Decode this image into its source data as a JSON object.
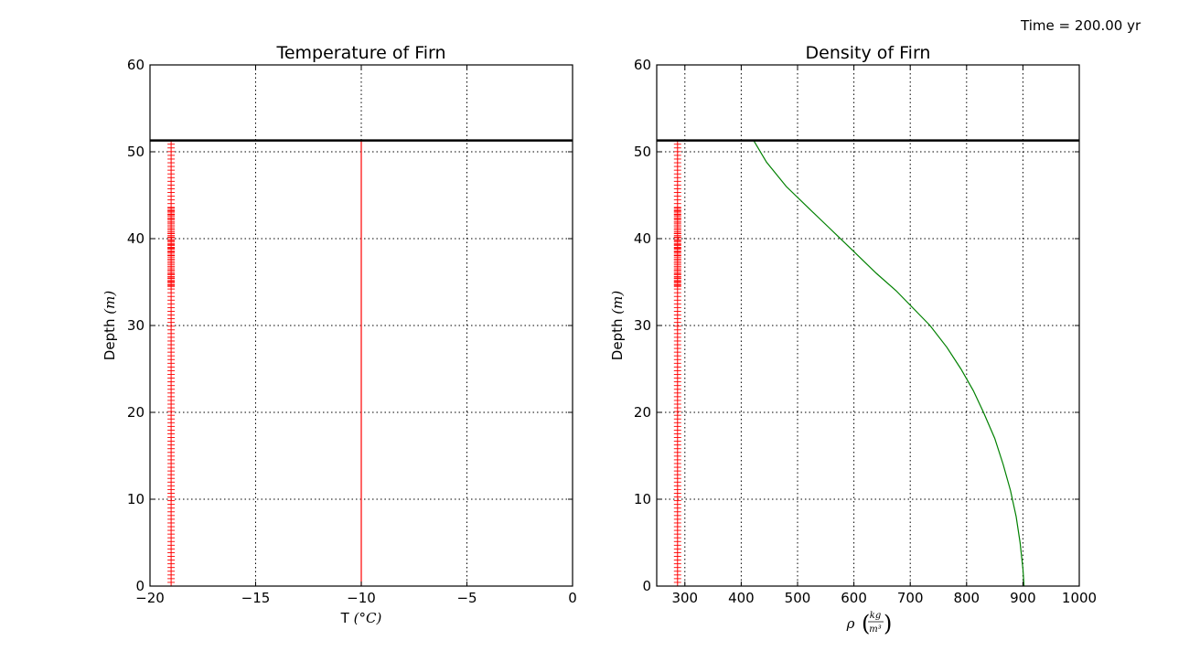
{
  "time_label": "Time = 200.00 yr",
  "chart_data": [
    {
      "type": "line",
      "title": "Temperature of Firn",
      "xlabel_text": "T",
      "xlabel_unit": "(°C)",
      "ylabel_text": "Depth",
      "ylabel_unit": "(m)",
      "xlim": [
        -20,
        0
      ],
      "ylim": [
        0,
        60
      ],
      "xticks": [
        -20,
        -15,
        -10,
        -5,
        0
      ],
      "xtick_labels": [
        "−20",
        "−15",
        "−10",
        "−5",
        "0"
      ],
      "yticks": [
        0,
        10,
        20,
        30,
        40,
        50,
        60
      ],
      "ytick_labels": [
        "0",
        "10",
        "20",
        "30",
        "40",
        "50",
        "60"
      ],
      "grid": true,
      "surface_depth": 51.3,
      "series": [
        {
          "kind": "markers",
          "color": "#ff0000",
          "x_constant": -19.0,
          "y_start": 0.0,
          "y_end": 51.3,
          "count": 120,
          "dense_band": [
            34.5,
            43.5
          ]
        },
        {
          "kind": "line",
          "color": "#ff0000",
          "x": [
            -10,
            -10
          ],
          "y": [
            0,
            51.3
          ]
        }
      ]
    },
    {
      "type": "line",
      "title": "Density of Firn",
      "xlabel_text": "ρ",
      "xlabel_unit_num": "kg",
      "xlabel_unit_den": "m³",
      "ylabel_text": "Depth",
      "ylabel_unit": "(m)",
      "xlim": [
        250,
        1000
      ],
      "ylim": [
        0,
        60
      ],
      "xticks": [
        300,
        400,
        500,
        600,
        700,
        800,
        900,
        1000
      ],
      "xtick_labels": [
        "300",
        "400",
        "500",
        "600",
        "700",
        "800",
        "900",
        "1000"
      ],
      "yticks": [
        0,
        10,
        20,
        30,
        40,
        50,
        60
      ],
      "ytick_labels": [
        "0",
        "10",
        "20",
        "30",
        "40",
        "50",
        "60"
      ],
      "grid": true,
      "surface_depth": 51.3,
      "series": [
        {
          "kind": "markers",
          "color": "#ff0000",
          "x_constant": 287,
          "y_start": 0.0,
          "y_end": 51.3,
          "count": 120,
          "dense_band": [
            34.5,
            43.5
          ]
        },
        {
          "kind": "line",
          "color": "#008000",
          "x": [
            902,
            900,
            895,
            888,
            878,
            865,
            850,
            830,
            812,
            790,
            765,
            735,
            705,
            675,
            640,
            600,
            560,
            520,
            480,
            445,
            422
          ],
          "y": [
            0,
            2,
            5,
            8,
            11,
            14,
            17,
            20,
            22.5,
            25,
            27.5,
            30,
            32,
            34,
            36,
            38.5,
            41,
            43.5,
            46,
            48.8,
            51.3
          ]
        }
      ]
    }
  ]
}
